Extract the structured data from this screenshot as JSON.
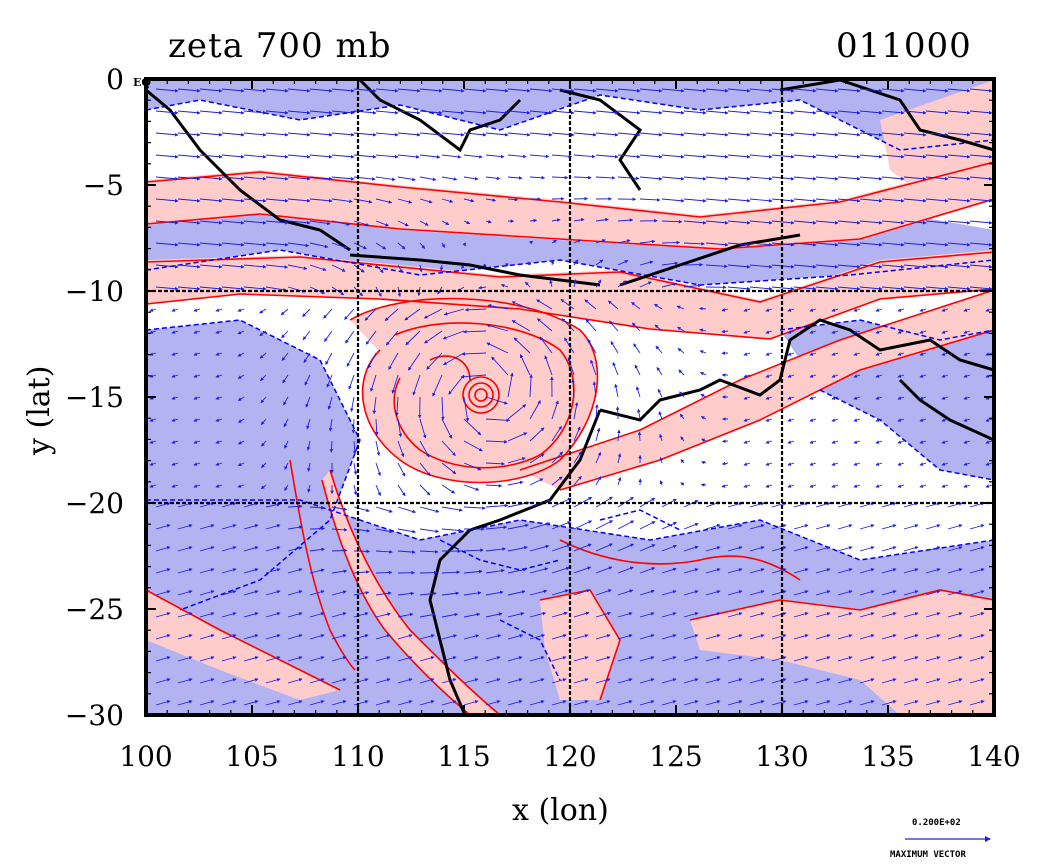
{
  "chart_data": {
    "type": "heatmap",
    "title": "zeta 700 mb",
    "time_label": "011000",
    "xlabel": "x (lon)",
    "ylabel": "y (lat)",
    "xlim": [
      100,
      140
    ],
    "ylim": [
      -30,
      0
    ],
    "x_ticks": [
      100,
      105,
      110,
      115,
      120,
      125,
      130,
      135,
      140
    ],
    "y_ticks": [
      0,
      -5,
      -10,
      -15,
      -20,
      -25,
      -30
    ],
    "y_tick_labels": [
      "0",
      "−5",
      "−10",
      "−15",
      "−20",
      "−25",
      "−30"
    ],
    "grid_lon": [
      110,
      120,
      130
    ],
    "grid_lat": [
      -10,
      -20
    ],
    "corner_label": "EQ",
    "fields": {
      "positive_vorticity_color": "#ffcccc",
      "positive_contour_color": "#ff0000",
      "negative_vorticity_color": "#b3b3f2",
      "negative_contour_color": "#0000ff",
      "coastline_color": "#000000",
      "vector_color": "#2020e0"
    },
    "cyclone_center": {
      "lon": 116.1,
      "lat": -14.8
    },
    "max_vector": {
      "value_label": "0.200E+02",
      "label": "MAXIMUM VECTOR"
    }
  }
}
